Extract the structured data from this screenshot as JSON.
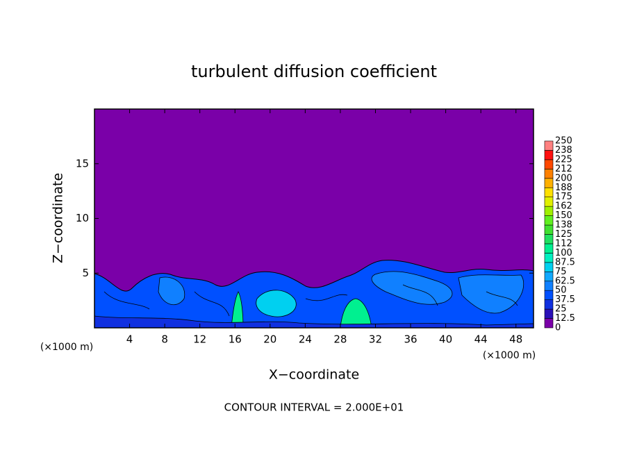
{
  "chart_data": {
    "type": "contour",
    "title": "turbulent diffusion coefficient",
    "x_label": "X−coordinate",
    "y_label": "Z−coordinate",
    "x_unit": "(×1000 m)",
    "annotation": "CONTOUR INTERVAL = 2.000E+01",
    "xlim": [
      0,
      50
    ],
    "xticks": [
      4,
      8,
      12,
      16,
      20,
      24,
      28,
      32,
      36,
      40,
      44,
      48
    ],
    "ylim": [
      0,
      20
    ],
    "yticks": [
      5,
      10,
      15
    ],
    "colorbar": {
      "levels": [
        0,
        12.5,
        25,
        37.5,
        50,
        62.5,
        75,
        87.5,
        100,
        {
          "value": 112.5,
          "label": "112"
        },
        125,
        {
          "value": 137.5,
          "label": "138"
        },
        150,
        {
          "value": 162.5,
          "label": "162"
        },
        175,
        {
          "value": 187.5,
          "label": "188"
        },
        200,
        {
          "value": 212.5,
          "label": "212"
        },
        225,
        {
          "value": 237.5,
          "label": "238"
        },
        250
      ],
      "colors": [
        "#7a00a8",
        "#2a10b8",
        "#1030e0",
        "#0050ff",
        "#1080ff",
        "#10a8ff",
        "#00d0f0",
        "#00f0c0",
        "#00f090",
        "#20e060",
        "#40e030",
        "#60f020",
        "#a0f000",
        "#e0f000",
        "#ffe000",
        "#ffb000",
        "#ff8000",
        "#ff4800",
        "#ff1010",
        "#ff8080"
      ]
    }
  }
}
